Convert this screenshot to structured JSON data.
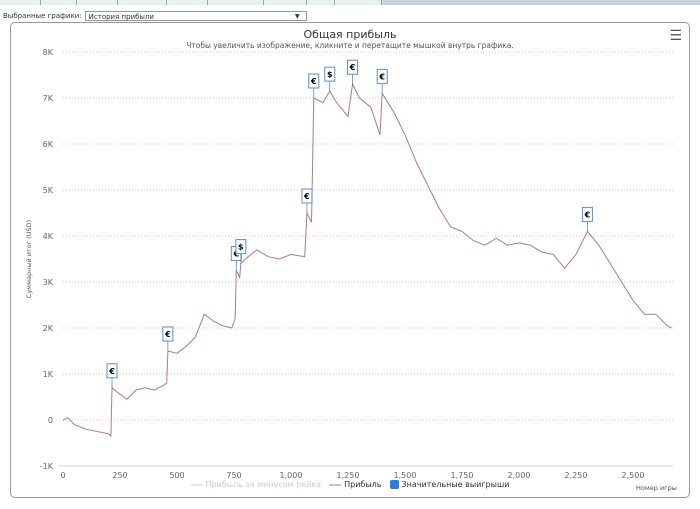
{
  "selector": {
    "label": "Выбранные графики:",
    "value": "История прибыли"
  },
  "chart_data": {
    "type": "line",
    "title": "Общая прибыль",
    "subtitle": "Чтобы увеличить изображение, кликните и перетащите мышкой внутрь графика.",
    "xlabel": "Номер игры",
    "ylabel": "Суммарный итог (USD)",
    "xlim": [
      0,
      2700
    ],
    "ylim": [
      -1000,
      8000
    ],
    "xticks": [
      0,
      250,
      500,
      750,
      1000,
      1250,
      1500,
      1750,
      2000,
      2250,
      2500
    ],
    "xtick_labels": [
      "0",
      "250",
      "500",
      "750",
      "1,000",
      "1,250",
      "1,500",
      "1,750",
      "2,000",
      "2,250",
      "2,500"
    ],
    "yticks": [
      -1000,
      0,
      1000,
      2000,
      3000,
      4000,
      5000,
      6000,
      7000,
      8000
    ],
    "ytick_labels": [
      "-1K",
      "0",
      "1K",
      "2K",
      "3K",
      "4K",
      "5K",
      "6K",
      "7K",
      "8K"
    ],
    "grid": true,
    "legend_placement": "bottom",
    "legend": [
      {
        "name": "Прибыль за минусом рейка",
        "color": "#cccccc",
        "hidden": true
      },
      {
        "name": "Прибыль",
        "color": "#b07a7d"
      },
      {
        "name": "Значительные выигрыши",
        "color": "#2f7ed8"
      }
    ],
    "series": [
      {
        "name": "Прибыль",
        "color": "#b07a7d",
        "x": [
          0,
          20,
          50,
          100,
          150,
          200,
          210,
          215,
          240,
          280,
          320,
          360,
          400,
          440,
          455,
          460,
          500,
          540,
          580,
          620,
          660,
          700,
          740,
          755,
          760,
          775,
          780,
          800,
          850,
          900,
          950,
          1000,
          1060,
          1070,
          1090,
          1100,
          1140,
          1170,
          1200,
          1250,
          1270,
          1300,
          1350,
          1390,
          1400,
          1450,
          1500,
          1550,
          1600,
          1650,
          1700,
          1750,
          1800,
          1850,
          1900,
          1950,
          2000,
          2050,
          2100,
          2150,
          2200,
          2250,
          2300,
          2350,
          2400,
          2450,
          2500,
          2550,
          2600,
          2650,
          2670
        ],
        "y": [
          0,
          50,
          -100,
          -200,
          -250,
          -300,
          -350,
          700,
          600,
          450,
          650,
          700,
          650,
          750,
          800,
          1500,
          1450,
          1600,
          1800,
          2300,
          2150,
          2050,
          2000,
          2200,
          3250,
          3100,
          3400,
          3500,
          3700,
          3550,
          3500,
          3600,
          3550,
          4500,
          4300,
          7000,
          6900,
          7150,
          6900,
          6600,
          7300,
          7000,
          6800,
          6200,
          7100,
          6700,
          6200,
          5600,
          5100,
          4600,
          4200,
          4100,
          3900,
          3800,
          3950,
          3800,
          3850,
          3800,
          3650,
          3600,
          3300,
          3600,
          4100,
          3800,
          3400,
          3000,
          2600,
          2300,
          2300,
          2050,
          2000
        ]
      }
    ],
    "flags": [
      {
        "x": 215,
        "y": 700,
        "symbol": "€"
      },
      {
        "x": 460,
        "y": 1500,
        "symbol": "€"
      },
      {
        "x": 760,
        "y": 3250,
        "symbol": "€"
      },
      {
        "x": 780,
        "y": 3400,
        "symbol": "$"
      },
      {
        "x": 1070,
        "y": 4500,
        "symbol": "€"
      },
      {
        "x": 1100,
        "y": 7000,
        "symbol": "€"
      },
      {
        "x": 1170,
        "y": 7150,
        "symbol": "$"
      },
      {
        "x": 1270,
        "y": 7300,
        "symbol": "€"
      },
      {
        "x": 1400,
        "y": 7100,
        "symbol": "€"
      },
      {
        "x": 2300,
        "y": 4100,
        "symbol": "€"
      }
    ]
  }
}
